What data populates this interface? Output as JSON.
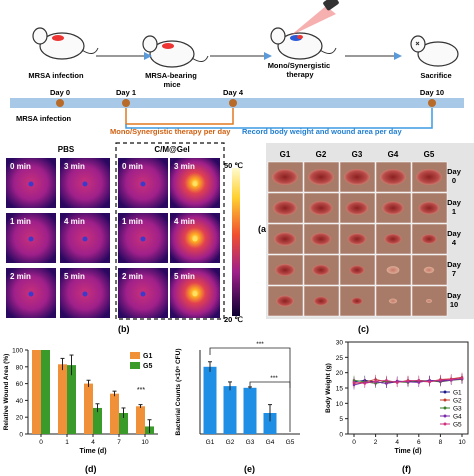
{
  "timeline": {
    "steps": [
      {
        "label": "MRSA infection",
        "day": "Day 0"
      },
      {
        "label": "MRSA-bearing\nmice",
        "day": "Day 1"
      },
      {
        "label": "Mono/Synergistic\ntherapy",
        "day": "Day 4"
      },
      {
        "label": "Sacrifice",
        "day": "Day 10"
      }
    ],
    "bar_label": "MRSA infection",
    "bracket_orange": "Mono/Synergistic therapy per day",
    "bracket_blue": "Record body weight and wound area per day"
  },
  "panel_b": {
    "label": "(b)",
    "group_left": "PBS",
    "group_right": "C/M@Gel",
    "times": [
      [
        "0 min",
        "3 min"
      ],
      [
        "1 min",
        "4 min"
      ],
      [
        "2 min",
        "5 min"
      ]
    ],
    "scale_max": "50 ℃",
    "scale_min": "20 ℃"
  },
  "panel_a": {
    "label": "(a)"
  },
  "panel_c": {
    "label": "(c)",
    "groups": [
      "G1",
      "G2",
      "G3",
      "G4",
      "G5"
    ],
    "days": [
      "Day\n0",
      "Day\n1",
      "Day\n4",
      "Day\n7",
      "Day\n10"
    ]
  },
  "colors": {
    "orange": "#f0913a",
    "green": "#3a9a2a",
    "blue": "#2a8ee0",
    "bar_blue": "#1f8fe5"
  },
  "chart_data": [
    {
      "id": "d",
      "label": "(d)",
      "type": "bar",
      "title": "",
      "xlabel": "Time (d)",
      "ylabel": "Relative Wound Area (%)",
      "categories": [
        "0",
        "1",
        "4",
        "7",
        "10"
      ],
      "ylim": [
        0,
        100
      ],
      "yticks": [
        0,
        20,
        40,
        60,
        80,
        100
      ],
      "series": [
        {
          "name": "G1",
          "values": [
            100,
            83,
            60,
            48,
            33
          ],
          "errors": [
            0,
            7,
            4,
            3,
            2
          ]
        },
        {
          "name": "G5",
          "values": [
            100,
            82,
            31,
            25,
            9
          ],
          "errors": [
            0,
            12,
            5,
            6,
            8
          ]
        }
      ],
      "annotation": "***"
    },
    {
      "id": "e",
      "label": "(e)",
      "type": "bar",
      "title": "",
      "xlabel": "",
      "ylabel": "Bacterial Counts (×10⁶ CFU)",
      "categories": [
        "G1",
        "G2",
        "G3",
        "G4",
        "G5"
      ],
      "ylim": [
        0,
        100
      ],
      "values": [
        80,
        57,
        55,
        25,
        0
      ],
      "errors": [
        6,
        5,
        1,
        10,
        0
      ],
      "annotations": [
        "***",
        "***"
      ]
    },
    {
      "id": "f",
      "label": "(f)",
      "type": "line",
      "title": "",
      "xlabel": "Time (d)",
      "ylabel": "Body Weight (g)",
      "x": [
        0,
        1,
        2,
        3,
        4,
        5,
        6,
        7,
        8,
        9,
        10
      ],
      "xticks": [
        0,
        2,
        4,
        6,
        8,
        10
      ],
      "ylim": [
        0,
        30
      ],
      "yticks": [
        0,
        5,
        10,
        15,
        20,
        25,
        30
      ],
      "series": [
        {
          "name": "G1",
          "color": "#1a1a8a",
          "values": [
            17,
            17.5,
            17,
            16.5,
            17,
            17.2,
            17,
            17.5,
            17.3,
            17.8,
            18
          ]
        },
        {
          "name": "G2",
          "color": "#c0392b",
          "values": [
            16.5,
            17,
            17.8,
            17,
            16.8,
            17.5,
            17.2,
            17,
            17.8,
            18,
            18.5
          ]
        },
        {
          "name": "G3",
          "color": "#3a7d2a",
          "values": [
            17.5,
            17,
            16.5,
            17.2,
            17,
            16.8,
            17.5,
            17.3,
            17,
            17.5,
            17.8
          ]
        },
        {
          "name": "G4",
          "color": "#7a2aa8",
          "values": [
            16,
            16.8,
            17,
            16.5,
            17.3,
            17,
            16.8,
            17.5,
            17.2,
            17.5,
            18
          ]
        },
        {
          "name": "G5",
          "color": "#d03080",
          "values": [
            16.8,
            16.5,
            17.2,
            17.5,
            16.8,
            17.3,
            17.5,
            17,
            17.6,
            17.8,
            18.2
          ]
        }
      ]
    }
  ]
}
